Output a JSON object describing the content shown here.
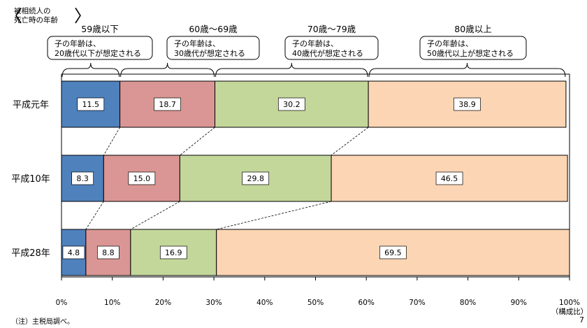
{
  "corner_label": {
    "line1": "被相続人の",
    "line2": "死亡時の年齢"
  },
  "note": "（注）主税局調べ。",
  "page_number": "7",
  "groups": [
    {
      "title": "59歳以下",
      "line1": "子の年齢は、",
      "line2": "20歳代以下が想定される"
    },
    {
      "title": "60歳～69歳",
      "line1": "子の年齢は、",
      "line2": "30歳代が想定される"
    },
    {
      "title": "70歳～79歳",
      "line1": "子の年齢は、",
      "line2": "40歳代が想定される"
    },
    {
      "title": "80歳以上",
      "line1": "子の年齢は、",
      "line2": "50歳代以上が想定される"
    }
  ],
  "colors": {
    "s1": "#4f81bd",
    "s2": "#da9694",
    "s3": "#c4d79b",
    "s4": "#fcd5b4"
  },
  "chart_data": {
    "type": "bar",
    "orientation": "horizontal",
    "stacked": true,
    "categories": [
      "平成元年",
      "平成10年",
      "平成28年"
    ],
    "series": [
      {
        "name": "59歳以下",
        "values": [
          11.5,
          8.3,
          4.8
        ]
      },
      {
        "name": "60歳～69歳",
        "values": [
          18.7,
          15.0,
          8.8
        ]
      },
      {
        "name": "70歳～79歳",
        "values": [
          30.2,
          29.8,
          16.9
        ]
      },
      {
        "name": "80歳以上",
        "values": [
          38.9,
          46.5,
          69.5
        ]
      }
    ],
    "value_labels": [
      [
        "11.5",
        "8.3",
        "4.8"
      ],
      [
        "18.7",
        "15.0",
        "8.8"
      ],
      [
        "30.2",
        "29.8",
        "16.9"
      ],
      [
        "38.9",
        "46.5",
        "69.5"
      ]
    ],
    "xlim": [
      0,
      100
    ],
    "xticks": [
      "0%",
      "10%",
      "20%",
      "30%",
      "40%",
      "50%",
      "60%",
      "70%",
      "80%",
      "90%",
      "100%"
    ],
    "xlabel": "（構成比）",
    "grid": false
  }
}
